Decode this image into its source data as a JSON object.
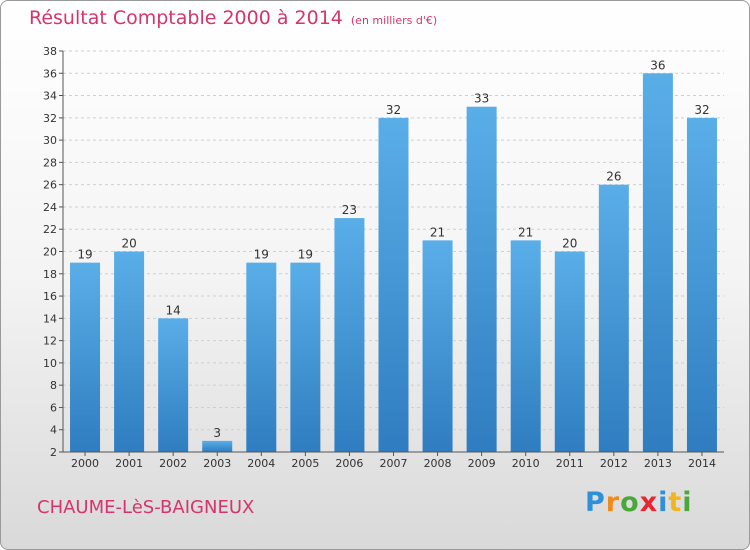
{
  "chart_data": {
    "type": "bar",
    "title": "Résultat Comptable 2000 à 2014",
    "subtitle": "(en milliers d'€)",
    "xlabel": "",
    "ylabel": "",
    "categories": [
      "2000",
      "2001",
      "2002",
      "2003",
      "2004",
      "2005",
      "2006",
      "2007",
      "2008",
      "2009",
      "2010",
      "2011",
      "2012",
      "2013",
      "2014"
    ],
    "values": [
      19,
      20,
      14,
      3,
      19,
      19,
      23,
      32,
      21,
      33,
      21,
      20,
      26,
      36,
      32
    ],
    "ylim": [
      2,
      38
    ],
    "yticks": [
      2,
      4,
      6,
      8,
      10,
      12,
      14,
      16,
      18,
      20,
      22,
      24,
      26,
      28,
      30,
      32,
      34,
      36,
      38
    ],
    "grid": true,
    "bar_color": "#3a8fd6"
  },
  "footer": {
    "place": "CHAUME-LèS-BAIGNEUX",
    "logo": [
      "P",
      "r",
      "o",
      "x",
      "i",
      "t",
      "i"
    ],
    "logo_colors": [
      "#2f8fd8",
      "#f28a1b",
      "#4aa83a",
      "#e8262f",
      "#2f8fd8",
      "#f2b51b",
      "#4aa83a"
    ]
  }
}
